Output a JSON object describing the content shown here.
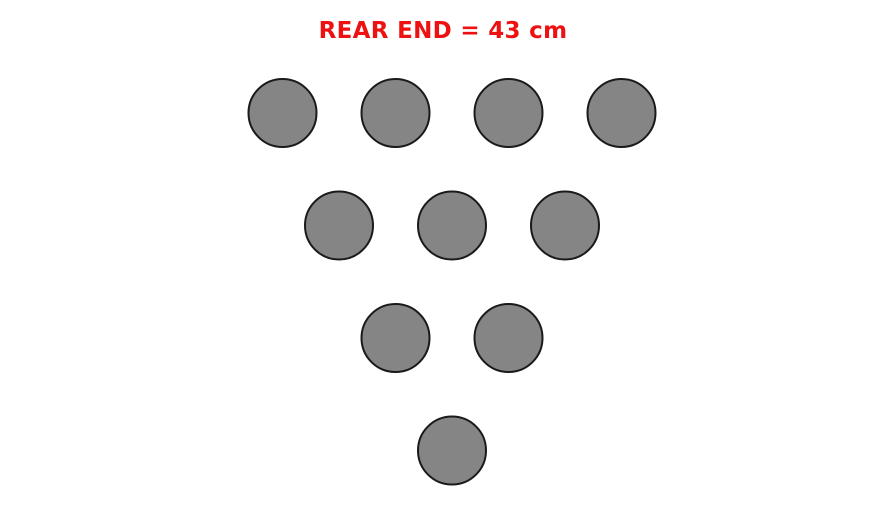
{
  "title": {
    "text": "REAR END = 43 cm",
    "color": "#ee1111"
  },
  "pins": {
    "rows": [
      4,
      3,
      2,
      1
    ],
    "total": 10,
    "fill_color": "#858585",
    "stroke_color": "#1a1a1a"
  }
}
